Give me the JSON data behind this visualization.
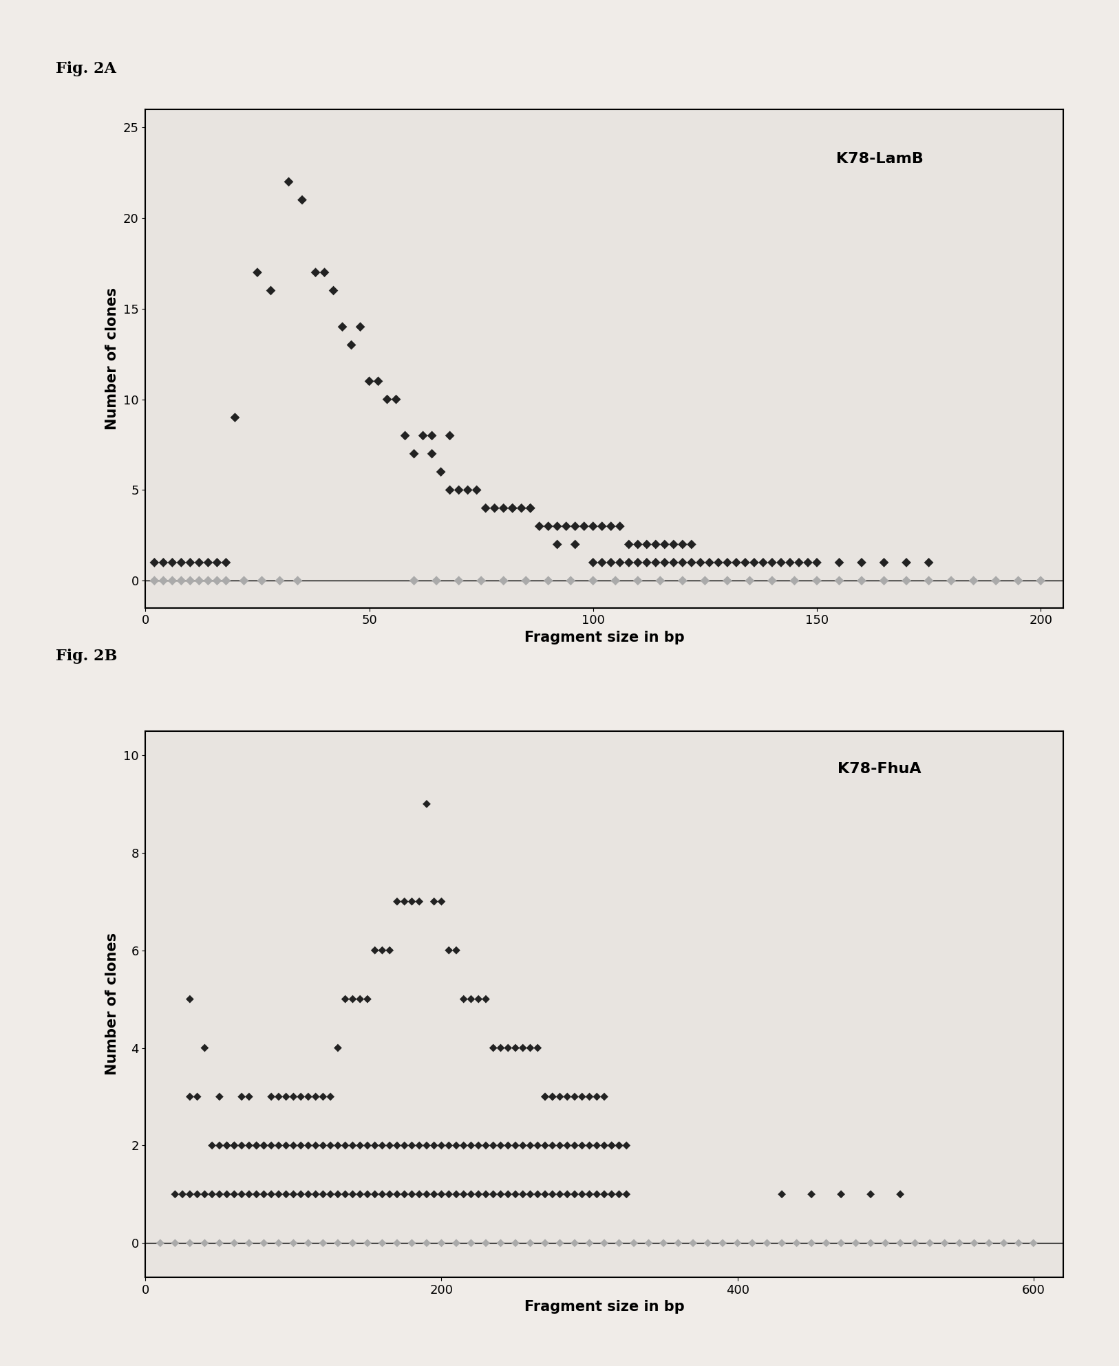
{
  "fig_a_label": "Fig. 2A",
  "fig_b_label": "Fig. 2B",
  "plot_a_title": "K78-LamB",
  "plot_b_title": "K78-FhuA",
  "xlabel": "Fragment size in bp",
  "ylabel": "Number of clones",
  "plot_a_xlim": [
    0,
    205
  ],
  "plot_a_ylim": [
    -1.5,
    26
  ],
  "plot_b_xlim": [
    0,
    620
  ],
  "plot_b_ylim": [
    -0.7,
    10.5
  ],
  "plot_a_xticks": [
    0,
    50,
    100,
    150,
    200
  ],
  "plot_a_yticks": [
    0,
    5,
    10,
    15,
    20,
    25
  ],
  "plot_b_xticks": [
    0,
    200,
    400,
    600
  ],
  "plot_b_yticks": [
    0,
    2,
    4,
    6,
    8,
    10
  ],
  "marker": "D",
  "marker_color_dark": "#222222",
  "marker_color_gray": "#aaaaaa",
  "marker_size_a": 7,
  "marker_size_b": 6,
  "background_color": "#f0ece8",
  "plot_bg_color": "#e8e4e0",
  "fig_label_fontsize": 16,
  "axis_label_fontsize": 15,
  "tick_fontsize": 13,
  "title_fontsize": 16,
  "plot_a_data": [
    [
      20,
      9
    ],
    [
      25,
      17
    ],
    [
      28,
      16
    ],
    [
      32,
      22
    ],
    [
      35,
      21
    ],
    [
      38,
      17
    ],
    [
      40,
      17
    ],
    [
      42,
      16
    ],
    [
      44,
      14
    ],
    [
      46,
      13
    ],
    [
      48,
      14
    ],
    [
      50,
      11
    ],
    [
      52,
      11
    ],
    [
      54,
      10
    ],
    [
      56,
      10
    ],
    [
      58,
      8
    ],
    [
      60,
      7
    ],
    [
      62,
      8
    ],
    [
      64,
      7
    ],
    [
      66,
      6
    ],
    [
      68,
      5
    ],
    [
      70,
      5
    ],
    [
      72,
      5
    ],
    [
      74,
      5
    ],
    [
      76,
      4
    ],
    [
      78,
      4
    ],
    [
      80,
      4
    ],
    [
      82,
      4
    ],
    [
      84,
      4
    ],
    [
      86,
      4
    ],
    [
      88,
      3
    ],
    [
      90,
      3
    ],
    [
      92,
      3
    ],
    [
      94,
      3
    ],
    [
      96,
      3
    ],
    [
      98,
      3
    ],
    [
      100,
      3
    ],
    [
      102,
      3
    ],
    [
      104,
      3
    ],
    [
      106,
      3
    ],
    [
      64,
      8
    ],
    [
      68,
      8
    ],
    [
      108,
      2
    ],
    [
      110,
      2
    ],
    [
      112,
      2
    ],
    [
      114,
      2
    ],
    [
      116,
      2
    ],
    [
      118,
      2
    ],
    [
      120,
      2
    ],
    [
      122,
      2
    ],
    [
      82,
      4
    ],
    [
      86,
      4
    ],
    [
      2,
      1
    ],
    [
      4,
      1
    ],
    [
      6,
      1
    ],
    [
      8,
      1
    ],
    [
      10,
      1
    ],
    [
      12,
      1
    ],
    [
      14,
      1
    ],
    [
      16,
      1
    ],
    [
      18,
      1
    ],
    [
      92,
      2
    ],
    [
      96,
      2
    ],
    [
      100,
      1
    ],
    [
      102,
      1
    ],
    [
      104,
      1
    ],
    [
      106,
      1
    ],
    [
      108,
      1
    ],
    [
      110,
      1
    ],
    [
      112,
      1
    ],
    [
      114,
      1
    ],
    [
      116,
      1
    ],
    [
      118,
      1
    ],
    [
      120,
      1
    ],
    [
      122,
      1
    ],
    [
      124,
      1
    ],
    [
      126,
      1
    ],
    [
      128,
      1
    ],
    [
      130,
      1
    ],
    [
      132,
      1
    ],
    [
      134,
      1
    ],
    [
      136,
      1
    ],
    [
      138,
      1
    ],
    [
      140,
      1
    ],
    [
      142,
      1
    ],
    [
      144,
      1
    ],
    [
      146,
      1
    ],
    [
      148,
      1
    ],
    [
      150,
      1
    ],
    [
      155,
      1
    ],
    [
      160,
      1
    ],
    [
      165,
      1
    ],
    [
      170,
      1
    ],
    [
      175,
      1
    ],
    [
      2,
      0
    ],
    [
      4,
      0
    ],
    [
      6,
      0
    ],
    [
      8,
      0
    ],
    [
      10,
      0
    ],
    [
      12,
      0
    ],
    [
      14,
      0
    ],
    [
      16,
      0
    ],
    [
      18,
      0
    ],
    [
      22,
      0
    ],
    [
      26,
      0
    ],
    [
      30,
      0
    ],
    [
      34,
      0
    ],
    [
      60,
      0
    ],
    [
      65,
      0
    ],
    [
      70,
      0
    ],
    [
      75,
      0
    ],
    [
      80,
      0
    ],
    [
      85,
      0
    ],
    [
      90,
      0
    ],
    [
      95,
      0
    ],
    [
      100,
      0
    ],
    [
      105,
      0
    ],
    [
      110,
      0
    ],
    [
      115,
      0
    ],
    [
      120,
      0
    ],
    [
      125,
      0
    ],
    [
      130,
      0
    ],
    [
      135,
      0
    ],
    [
      140,
      0
    ],
    [
      145,
      0
    ],
    [
      150,
      0
    ],
    [
      155,
      0
    ],
    [
      160,
      0
    ],
    [
      165,
      0
    ],
    [
      170,
      0
    ],
    [
      175,
      0
    ],
    [
      180,
      0
    ],
    [
      185,
      0
    ],
    [
      190,
      0
    ],
    [
      195,
      0
    ],
    [
      200,
      0
    ]
  ],
  "plot_b_data": [
    [
      30,
      5
    ],
    [
      40,
      4
    ],
    [
      50,
      3
    ],
    [
      55,
      2
    ],
    [
      60,
      2
    ],
    [
      65,
      3
    ],
    [
      70,
      3
    ],
    [
      75,
      2
    ],
    [
      80,
      2
    ],
    [
      85,
      3
    ],
    [
      90,
      3
    ],
    [
      95,
      3
    ],
    [
      100,
      3
    ],
    [
      105,
      3
    ],
    [
      110,
      3
    ],
    [
      115,
      3
    ],
    [
      120,
      3
    ],
    [
      125,
      3
    ],
    [
      130,
      4
    ],
    [
      135,
      5
    ],
    [
      140,
      5
    ],
    [
      145,
      5
    ],
    [
      150,
      5
    ],
    [
      155,
      6
    ],
    [
      160,
      6
    ],
    [
      165,
      6
    ],
    [
      170,
      7
    ],
    [
      175,
      7
    ],
    [
      180,
      7
    ],
    [
      185,
      7
    ],
    [
      190,
      9
    ],
    [
      195,
      7
    ],
    [
      200,
      7
    ],
    [
      205,
      6
    ],
    [
      210,
      6
    ],
    [
      215,
      5
    ],
    [
      220,
      5
    ],
    [
      225,
      5
    ],
    [
      230,
      5
    ],
    [
      235,
      4
    ],
    [
      240,
      4
    ],
    [
      245,
      4
    ],
    [
      250,
      4
    ],
    [
      255,
      4
    ],
    [
      260,
      4
    ],
    [
      265,
      4
    ],
    [
      270,
      3
    ],
    [
      275,
      3
    ],
    [
      280,
      3
    ],
    [
      285,
      3
    ],
    [
      290,
      3
    ],
    [
      295,
      3
    ],
    [
      300,
      3
    ],
    [
      305,
      3
    ],
    [
      310,
      3
    ],
    [
      270,
      3
    ],
    [
      275,
      3
    ],
    [
      315,
      2
    ],
    [
      320,
      2
    ],
    [
      325,
      2
    ],
    [
      30,
      3
    ],
    [
      35,
      3
    ],
    [
      45,
      2
    ],
    [
      50,
      2
    ],
    [
      55,
      2
    ],
    [
      60,
      2
    ],
    [
      65,
      2
    ],
    [
      70,
      2
    ],
    [
      75,
      2
    ],
    [
      80,
      2
    ],
    [
      85,
      2
    ],
    [
      90,
      2
    ],
    [
      95,
      2
    ],
    [
      100,
      2
    ],
    [
      105,
      2
    ],
    [
      110,
      2
    ],
    [
      115,
      2
    ],
    [
      120,
      2
    ],
    [
      125,
      2
    ],
    [
      130,
      2
    ],
    [
      135,
      2
    ],
    [
      140,
      2
    ],
    [
      145,
      2
    ],
    [
      150,
      2
    ],
    [
      155,
      2
    ],
    [
      160,
      2
    ],
    [
      165,
      2
    ],
    [
      170,
      2
    ],
    [
      175,
      2
    ],
    [
      180,
      2
    ],
    [
      185,
      2
    ],
    [
      190,
      2
    ],
    [
      195,
      2
    ],
    [
      200,
      2
    ],
    [
      205,
      2
    ],
    [
      210,
      2
    ],
    [
      215,
      2
    ],
    [
      220,
      2
    ],
    [
      225,
      2
    ],
    [
      230,
      2
    ],
    [
      235,
      2
    ],
    [
      240,
      2
    ],
    [
      245,
      2
    ],
    [
      250,
      2
    ],
    [
      255,
      2
    ],
    [
      260,
      2
    ],
    [
      265,
      2
    ],
    [
      270,
      2
    ],
    [
      275,
      2
    ],
    [
      280,
      2
    ],
    [
      285,
      2
    ],
    [
      290,
      2
    ],
    [
      295,
      2
    ],
    [
      300,
      2
    ],
    [
      305,
      2
    ],
    [
      310,
      2
    ],
    [
      315,
      2
    ],
    [
      320,
      2
    ],
    [
      20,
      1
    ],
    [
      25,
      1
    ],
    [
      30,
      1
    ],
    [
      35,
      1
    ],
    [
      40,
      1
    ],
    [
      45,
      1
    ],
    [
      50,
      1
    ],
    [
      55,
      1
    ],
    [
      60,
      1
    ],
    [
      65,
      1
    ],
    [
      70,
      1
    ],
    [
      75,
      1
    ],
    [
      80,
      1
    ],
    [
      85,
      1
    ],
    [
      90,
      1
    ],
    [
      95,
      1
    ],
    [
      100,
      1
    ],
    [
      105,
      1
    ],
    [
      110,
      1
    ],
    [
      115,
      1
    ],
    [
      120,
      1
    ],
    [
      125,
      1
    ],
    [
      130,
      1
    ],
    [
      135,
      1
    ],
    [
      140,
      1
    ],
    [
      145,
      1
    ],
    [
      150,
      1
    ],
    [
      155,
      1
    ],
    [
      160,
      1
    ],
    [
      165,
      1
    ],
    [
      170,
      1
    ],
    [
      175,
      1
    ],
    [
      180,
      1
    ],
    [
      185,
      1
    ],
    [
      190,
      1
    ],
    [
      195,
      1
    ],
    [
      200,
      1
    ],
    [
      205,
      1
    ],
    [
      210,
      1
    ],
    [
      215,
      1
    ],
    [
      220,
      1
    ],
    [
      225,
      1
    ],
    [
      230,
      1
    ],
    [
      235,
      1
    ],
    [
      240,
      1
    ],
    [
      245,
      1
    ],
    [
      250,
      1
    ],
    [
      255,
      1
    ],
    [
      260,
      1
    ],
    [
      265,
      1
    ],
    [
      270,
      1
    ],
    [
      275,
      1
    ],
    [
      280,
      1
    ],
    [
      285,
      1
    ],
    [
      290,
      1
    ],
    [
      295,
      1
    ],
    [
      300,
      1
    ],
    [
      305,
      1
    ],
    [
      310,
      1
    ],
    [
      315,
      1
    ],
    [
      320,
      1
    ],
    [
      325,
      1
    ],
    [
      430,
      1
    ],
    [
      450,
      1
    ],
    [
      470,
      1
    ],
    [
      490,
      1
    ],
    [
      510,
      1
    ],
    [
      10,
      0
    ],
    [
      20,
      0
    ],
    [
      30,
      0
    ],
    [
      40,
      0
    ],
    [
      50,
      0
    ],
    [
      60,
      0
    ],
    [
      70,
      0
    ],
    [
      80,
      0
    ],
    [
      90,
      0
    ],
    [
      100,
      0
    ],
    [
      110,
      0
    ],
    [
      120,
      0
    ],
    [
      130,
      0
    ],
    [
      140,
      0
    ],
    [
      150,
      0
    ],
    [
      160,
      0
    ],
    [
      170,
      0
    ],
    [
      180,
      0
    ],
    [
      190,
      0
    ],
    [
      200,
      0
    ],
    [
      210,
      0
    ],
    [
      220,
      0
    ],
    [
      230,
      0
    ],
    [
      240,
      0
    ],
    [
      250,
      0
    ],
    [
      260,
      0
    ],
    [
      270,
      0
    ],
    [
      280,
      0
    ],
    [
      290,
      0
    ],
    [
      300,
      0
    ],
    [
      310,
      0
    ],
    [
      320,
      0
    ],
    [
      330,
      0
    ],
    [
      340,
      0
    ],
    [
      350,
      0
    ],
    [
      360,
      0
    ],
    [
      370,
      0
    ],
    [
      380,
      0
    ],
    [
      390,
      0
    ],
    [
      400,
      0
    ],
    [
      410,
      0
    ],
    [
      420,
      0
    ],
    [
      430,
      0
    ],
    [
      440,
      0
    ],
    [
      450,
      0
    ],
    [
      460,
      0
    ],
    [
      470,
      0
    ],
    [
      480,
      0
    ],
    [
      490,
      0
    ],
    [
      500,
      0
    ],
    [
      510,
      0
    ],
    [
      520,
      0
    ],
    [
      530,
      0
    ],
    [
      540,
      0
    ],
    [
      550,
      0
    ],
    [
      560,
      0
    ],
    [
      570,
      0
    ],
    [
      580,
      0
    ],
    [
      590,
      0
    ],
    [
      600,
      0
    ]
  ]
}
